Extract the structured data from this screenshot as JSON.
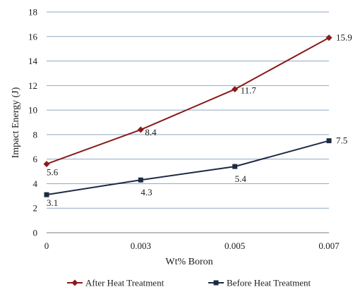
{
  "chart_data": {
    "type": "line",
    "title": "",
    "xlabel": "Wt% Boron",
    "ylabel": "Impact Energy (J)",
    "categories": [
      "0",
      "0.003",
      "0.005",
      "0.007"
    ],
    "ylim": [
      0,
      18
    ],
    "yticks": [
      "0",
      "2",
      "4",
      "6",
      "8",
      "10",
      "12",
      "14",
      "16",
      "18"
    ],
    "grid": "horizontal",
    "legend_position": "bottom",
    "series": [
      {
        "name": "After Heat Treatment",
        "values": [
          5.6,
          8.4,
          11.7,
          15.9
        ],
        "labels": [
          "5.6",
          "8.4",
          "11.7",
          "15.9"
        ],
        "color": "#8b1a1a",
        "marker": "diamond"
      },
      {
        "name": "Before Heat Treatment",
        "values": [
          3.1,
          4.3,
          5.4,
          7.5
        ],
        "labels": [
          "3.1",
          "4.3",
          "5.4",
          "7.5"
        ],
        "color": "#1c2a44",
        "marker": "square"
      }
    ]
  }
}
